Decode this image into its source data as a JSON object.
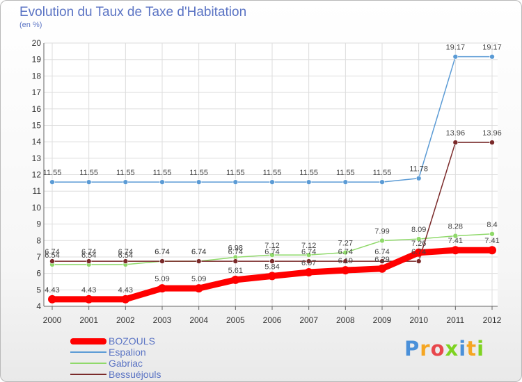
{
  "chart_data": {
    "type": "line",
    "title": "Evolution du Taux de Taxe d'Habitation",
    "unit": "(en %)",
    "x": [
      2000,
      2001,
      2002,
      2003,
      2004,
      2005,
      2006,
      2007,
      2008,
      2009,
      2010,
      2011,
      2012
    ],
    "ylim": [
      4,
      20
    ],
    "yticks": [
      4,
      5,
      6,
      7,
      8,
      9,
      10,
      11,
      12,
      13,
      14,
      15,
      16,
      17,
      18,
      19,
      20
    ],
    "grid": true,
    "legend_position": "bottom-left",
    "series": [
      {
        "name": "BOZOULS",
        "color": "#ff0000",
        "values": [
          4.43,
          4.43,
          4.43,
          5.09,
          5.09,
          5.61,
          5.84,
          6.07,
          6.19,
          6.29,
          7.26,
          7.41,
          7.41
        ],
        "labels": [
          "4.43",
          "4.43",
          "4.43",
          "5.09",
          "5.09",
          "5.61",
          "5.84",
          "6.07",
          "6.19",
          "6.29",
          "7.26",
          "7.41",
          "7.41"
        ]
      },
      {
        "name": "Espalion",
        "color": "#5b9bd5",
        "values": [
          11.55,
          11.55,
          11.55,
          11.55,
          11.55,
          11.55,
          11.55,
          11.55,
          11.55,
          11.55,
          11.78,
          19.17,
          19.17
        ],
        "labels": [
          "11.55",
          "11.55",
          "11.55",
          "11.55",
          "11.55",
          "11.55",
          "11.55",
          "11.55",
          "11.55",
          "11.55",
          "11.78",
          "19.17",
          "19.17"
        ]
      },
      {
        "name": "Gabriac",
        "color": "#8fd96a",
        "values": [
          6.54,
          6.54,
          6.54,
          6.74,
          6.74,
          6.98,
          7.12,
          7.12,
          7.27,
          7.99,
          8.09,
          8.28,
          8.4
        ],
        "labels": [
          "6.54",
          "6.54",
          "6.54",
          "6.74",
          "6.74",
          "6.98",
          "7.12",
          "7.12",
          "7.27",
          "7.99",
          "8.09",
          "8.28",
          "8.4"
        ]
      },
      {
        "name": "Bessuéjouls",
        "color": "#7a2a2a",
        "values": [
          6.74,
          6.74,
          6.74,
          6.74,
          6.74,
          6.74,
          6.74,
          6.74,
          6.74,
          6.74,
          6.74,
          13.96,
          13.96
        ],
        "labels": [
          "6.74",
          "6.74",
          "6.74",
          "6.74",
          "6.74",
          "6.74",
          "6.74",
          "6.74",
          "6.74",
          "6.74",
          "6.74",
          "13.96",
          "13.96"
        ]
      }
    ]
  },
  "logo": {
    "text": "Proxiti",
    "colors": [
      "#4a90d9",
      "#f5a623",
      "#e8474c",
      "#7ed321",
      "#4a90d9",
      "#f5a623",
      "#7ed321"
    ]
  }
}
